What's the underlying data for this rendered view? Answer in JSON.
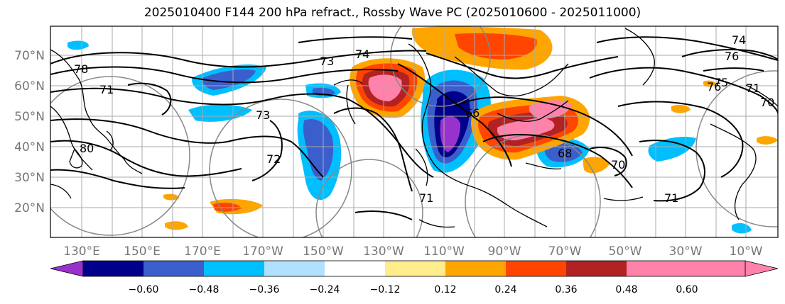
{
  "title": "2025010400 F144 200 hPa refract., Rossby Wave PC (2025010600 - 2025011000)",
  "map": {
    "lat_labels": [
      "70°N",
      "60°N",
      "50°N",
      "40°N",
      "30°N",
      "20°N"
    ],
    "lon_labels": [
      "130°E",
      "150°E",
      "170°E",
      "170°W",
      "150°W",
      "130°W",
      "110°W",
      "90°W",
      "70°W",
      "50°W",
      "30°W",
      "10°W"
    ],
    "contour_labels": [
      "78",
      "71",
      "73",
      "74",
      "80",
      "76",
      "72",
      "73",
      "71",
      "70",
      "71",
      "74",
      "76",
      "75",
      "71",
      "68",
      "66",
      "70"
    ]
  },
  "colorbar": {
    "tick_labels": [
      "−0.60",
      "−0.48",
      "−0.36",
      "−0.24",
      "−0.12",
      "0.12",
      "0.24",
      "0.36",
      "0.48",
      "0.60"
    ],
    "colors": [
      "#9932cc",
      "#00008b",
      "#3a5fcd",
      "#00bfff",
      "#b0e2ff",
      "#ffffff",
      "#ffec8b",
      "#ffa500",
      "#ff4500",
      "#b22222",
      "#ff82ab"
    ]
  }
}
